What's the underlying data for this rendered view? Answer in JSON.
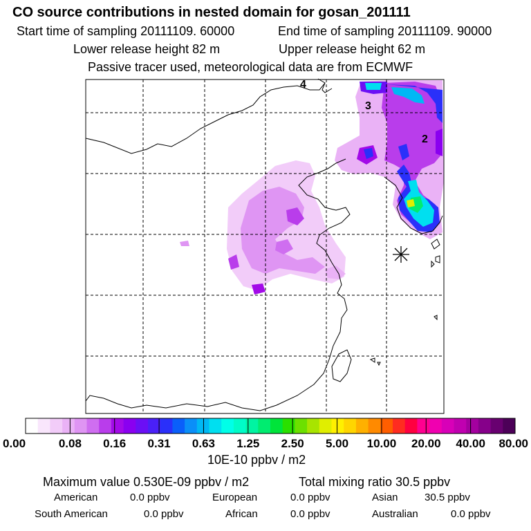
{
  "header": {
    "title": "CO  source contributions in nested domain for gosan_201111",
    "start_time": "Start time of sampling 20111109. 60000",
    "end_time": "End time of sampling 20111109. 90000",
    "lower_height": "Lower release height   82 m",
    "upper_height": "Upper release height   62 m",
    "note": "Passive tracer used, meteorological data are from ECMWF"
  },
  "chart_data": {
    "type": "heatmap",
    "title": "CO  source contributions in nested domain for gosan_201111",
    "map_labels": [
      "4",
      "3",
      "2"
    ],
    "receptor": "Gosan station (star marker)",
    "colorbar": {
      "unit": "10E-10 ppbv / m2",
      "tick_labels": [
        "0.00",
        "0.08",
        "0.16",
        "0.31",
        "0.63",
        "1.25",
        "2.50",
        "5.00",
        "10.00",
        "20.00",
        "40.00",
        "80.00"
      ],
      "colors": [
        "#ffffff",
        "#f9e6fc",
        "#f2ccf9",
        "#eab2f6",
        "#df95f3",
        "#cf6ef0",
        "#b93deb",
        "#a30ae8",
        "#8a00f0",
        "#6b0ff5",
        "#4a20f8",
        "#2a30fa",
        "#0a5ffa",
        "#0a8ff8",
        "#00b8f5",
        "#00dff0",
        "#00ffe8",
        "#00fcc8",
        "#00f4a2",
        "#00ec70",
        "#00e43a",
        "#2ae000",
        "#6ce000",
        "#a8e400",
        "#e0ee00",
        "#fff000",
        "#ffd500",
        "#ffb000",
        "#ff8a00",
        "#ff5e00",
        "#ff2c20",
        "#ff0040",
        "#ff0090",
        "#f000b0",
        "#d800b8",
        "#c000b0",
        "#a4009f",
        "#86008a",
        "#680070",
        "#4c0058"
      ]
    },
    "maximum_value": "0.530E-09 ppbv / m2",
    "total_mixing_ratio": "30.5 ppbv"
  },
  "summary": {
    "max_label": "Maximum value  0.530E-09 ppbv / m2",
    "total_label": "Total mixing ratio       30.5 ppbv"
  },
  "sources": {
    "american_label": "American",
    "american_value": "0.0 ppbv",
    "european_label": "European",
    "european_value": "0.0 ppbv",
    "asian_label": "Asian",
    "asian_value": "30.5 ppbv",
    "south_american_label": "South American",
    "south_american_value": "0.0 ppbv",
    "african_label": "African",
    "african_value": "0.0 ppbv",
    "australian_label": "Australian",
    "australian_value": "0.0 ppbv"
  }
}
